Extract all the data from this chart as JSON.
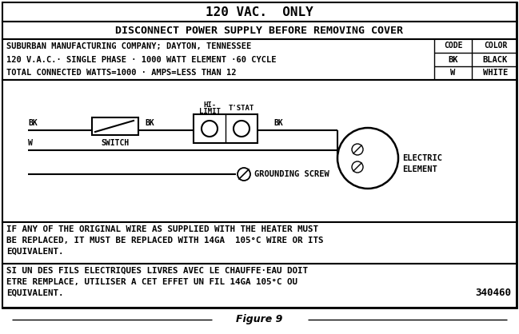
{
  "title": "120 VAC.  ONLY",
  "warning": "DISCONNECT POWER SUPPLY BEFORE REMOVING COVER",
  "info_line1": "SUBURBAN MANUFACTURING COMPANY; DAYTON, TENNESSEE",
  "info_line2": "120 V.A.C.· SINGLE PHASE · 1000 WATT ELEMENT ·60 CYCLE",
  "info_line3": "TOTAL CONNECTED WATTS=1000 · AMPS=LESS THAN 12",
  "code_header": "CODE",
  "color_header": "COLOR",
  "code1": "BK",
  "color1": "BLACK",
  "code2": "W",
  "color2": "WHITE",
  "note_en": "IF ANY OF THE ORIGINAL WIRE AS SUPPLIED WITH THE HEATER MUST\nBE REPLACED, IT MUST BE REPLACED WITH 14GA  105°C WIRE OR ITS\nEQUIVALENT.",
  "note_fr": "SI UN DES FILS ELECTRIQUES LIVRES AVEC LE CHAUFFE·EAU DOIT\nETRE REMPLACE, UTILISER A CET EFFET UN FIL 14GA 105°C OU\nEQUIVALENT.",
  "part_number": "340460",
  "figure_label": "Figure 9",
  "bg_color": "#ffffff",
  "fg_color": "#000000"
}
